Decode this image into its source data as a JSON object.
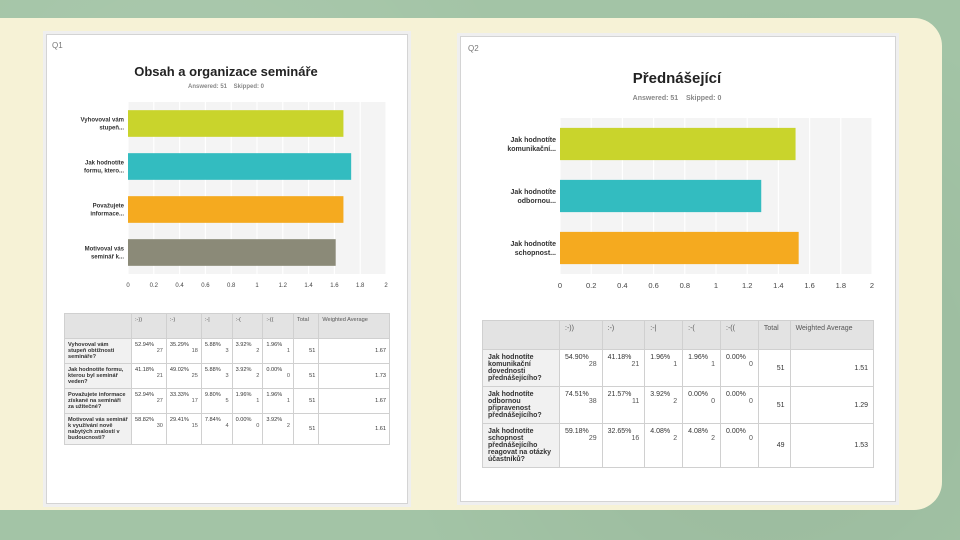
{
  "colors": {
    "lime": "#c9d42c",
    "teal": "#33bcc0",
    "orange": "#f5aa1f",
    "gray": "#8b8a78"
  },
  "q1": {
    "qnum": "Q1",
    "title": "Obsah a organizace semináře",
    "answered": "Answered: 51",
    "skipped": "Skipped: 0"
  },
  "q2": {
    "qnum": "Q2",
    "title": "Přednášející",
    "answered": "Answered: 51",
    "skipped": "Skipped: 0"
  },
  "chart_data": [
    {
      "type": "bar",
      "orientation": "horizontal",
      "title": "Obsah a organizace semináře",
      "categories": [
        "Vyhovoval vám stupeň...",
        "Jak hodnotíte formu, ktero...",
        "Považujete informace...",
        "Motivoval vás seminář k..."
      ],
      "category_lines": [
        [
          "Vyhovoval vám",
          "stupeň..."
        ],
        [
          "Jak hodnotíte",
          "formu, ktero..."
        ],
        [
          "Považujete",
          "informace..."
        ],
        [
          "Motivoval vás",
          "seminář k..."
        ]
      ],
      "values": [
        1.67,
        1.73,
        1.67,
        1.61
      ],
      "bar_colors": [
        "#c9d42c",
        "#33bcc0",
        "#f5aa1f",
        "#8b8a78"
      ],
      "xlim": [
        0,
        2
      ],
      "xticks": [
        "0",
        "0.2",
        "0.4",
        "0.6",
        "0.8",
        "1",
        "1.2",
        "1.4",
        "1.6",
        "1.8",
        "2"
      ],
      "grid": true
    },
    {
      "type": "bar",
      "orientation": "horizontal",
      "title": "Přednášející",
      "categories": [
        "Jak hodnotíte komunikační...",
        "Jak hodnotíte odbornou...",
        "Jak hodnotíte schopnost..."
      ],
      "category_lines": [
        [
          "Jak hodnotíte",
          "komunikační..."
        ],
        [
          "Jak hodnotíte",
          "odbornou..."
        ],
        [
          "Jak hodnotíte",
          "schopnost..."
        ]
      ],
      "values": [
        1.51,
        1.29,
        1.53
      ],
      "bar_colors": [
        "#c9d42c",
        "#33bcc0",
        "#f5aa1f"
      ],
      "xlim": [
        0,
        2
      ],
      "xticks": [
        "0",
        "0.2",
        "0.4",
        "0.6",
        "0.8",
        "1",
        "1.2",
        "1.4",
        "1.6",
        "1.8",
        "2"
      ],
      "grid": true
    }
  ],
  "table1": {
    "headers": [
      "",
      ":-))",
      ":-)",
      ":-|",
      ":-(",
      ":-((",
      "Total",
      "Weighted Average"
    ],
    "rows": [
      {
        "q": "Vyhovoval vám stupeň obtížnosti semináře?",
        "cells": [
          [
            "52.94%",
            "27"
          ],
          [
            "35.29%",
            "18"
          ],
          [
            "5.88%",
            "3"
          ],
          [
            "3.92%",
            "2"
          ],
          [
            "1.96%",
            "1"
          ]
        ],
        "total": "51",
        "avg": "1.67"
      },
      {
        "q": "Jak hodnotíte formu, kterou byl seminář veden?",
        "cells": [
          [
            "41.18%",
            "21"
          ],
          [
            "49.02%",
            "25"
          ],
          [
            "5.88%",
            "3"
          ],
          [
            "3.92%",
            "2"
          ],
          [
            "0.00%",
            "0"
          ]
        ],
        "total": "51",
        "avg": "1.73"
      },
      {
        "q": "Považujete informace získané na semináři za užitečné?",
        "cells": [
          [
            "52.94%",
            "27"
          ],
          [
            "33.33%",
            "17"
          ],
          [
            "9.80%",
            "5"
          ],
          [
            "1.96%",
            "1"
          ],
          [
            "1.96%",
            "1"
          ]
        ],
        "total": "51",
        "avg": "1.67"
      },
      {
        "q": "Motivoval vás seminář k využívání nově nabytých znalostí v budoucnosti?",
        "cells": [
          [
            "58.82%",
            "30"
          ],
          [
            "29.41%",
            "15"
          ],
          [
            "7.84%",
            "4"
          ],
          [
            "0.00%",
            "0"
          ],
          [
            "3.92%",
            "2"
          ]
        ],
        "total": "51",
        "avg": "1.61"
      }
    ]
  },
  "table2": {
    "headers": [
      "",
      ":-))",
      ":-)",
      ":-|",
      ":-(",
      ":-((",
      "Total",
      "Weighted Average"
    ],
    "rows": [
      {
        "q": "Jak hodnotíte komunikační dovednosti přednášejícího?",
        "cells": [
          [
            "54.90%",
            "28"
          ],
          [
            "41.18%",
            "21"
          ],
          [
            "1.96%",
            "1"
          ],
          [
            "1.96%",
            "1"
          ],
          [
            "0.00%",
            "0"
          ]
        ],
        "total": "51",
        "avg": "1.51"
      },
      {
        "q": "Jak hodnotíte odbornou připravenost přednášejícího?",
        "cells": [
          [
            "74.51%",
            "38"
          ],
          [
            "21.57%",
            "11"
          ],
          [
            "3.92%",
            "2"
          ],
          [
            "0.00%",
            "0"
          ],
          [
            "0.00%",
            "0"
          ]
        ],
        "total": "51",
        "avg": "1.29"
      },
      {
        "q": "Jak hodnotíte schopnost přednášejícího reagovat na otázky účastníků?",
        "cells": [
          [
            "59.18%",
            "29"
          ],
          [
            "32.65%",
            "16"
          ],
          [
            "4.08%",
            "2"
          ],
          [
            "4.08%",
            "2"
          ],
          [
            "0.00%",
            "0"
          ]
        ],
        "total": "49",
        "avg": "1.53"
      }
    ]
  }
}
